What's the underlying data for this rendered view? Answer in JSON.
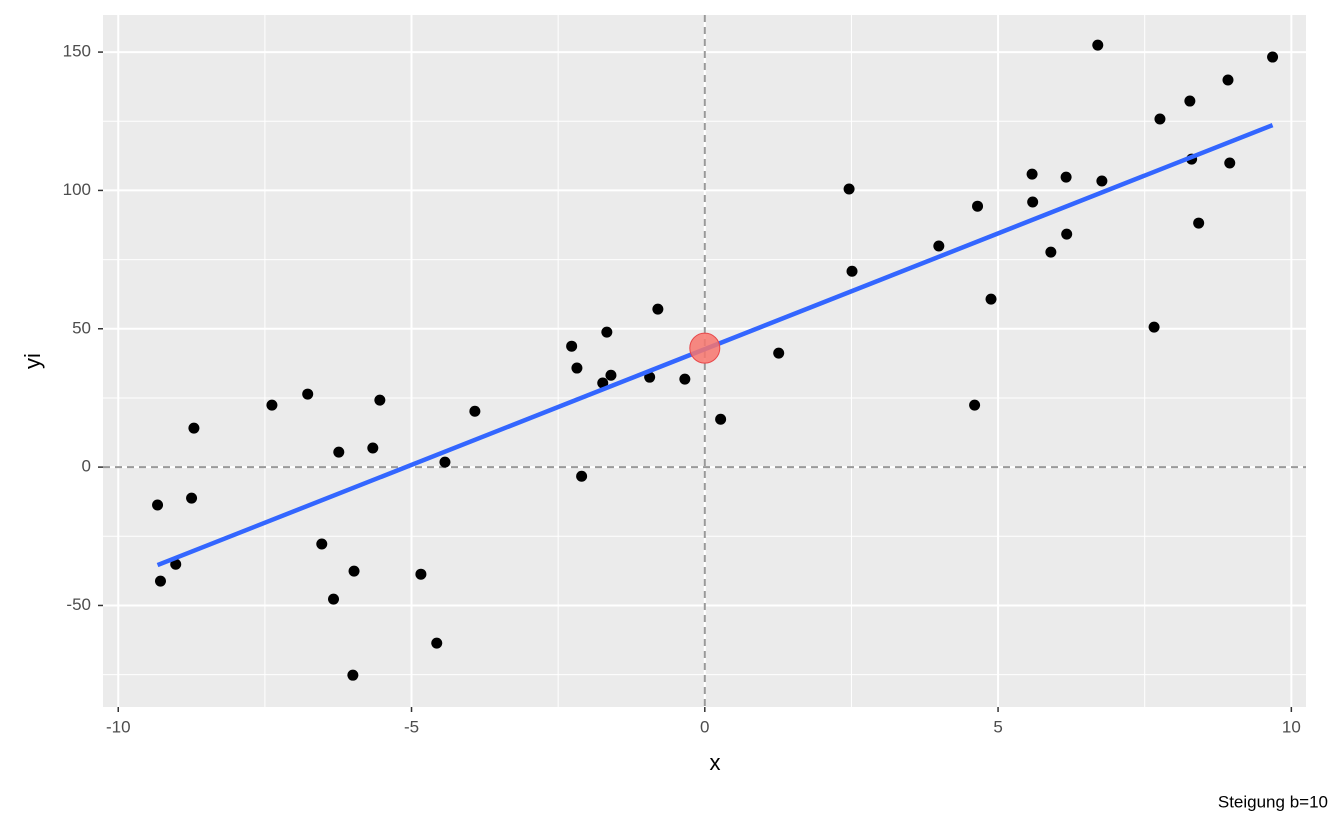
{
  "chart_data": {
    "type": "scatter",
    "xlabel": "x",
    "ylabel": "yi",
    "caption": "Steigung b=10",
    "xlim": [
      -10.26,
      10.25
    ],
    "ylim": [
      -86.7,
      163.4
    ],
    "xticks": [
      -10,
      -5,
      0,
      5,
      10
    ],
    "yticks": [
      -50,
      0,
      50,
      100,
      150
    ],
    "x_minor_grid": [
      -7.5,
      -2.5,
      2.5,
      7.5
    ],
    "y_minor_grid": [
      -75,
      -25,
      25,
      75,
      125
    ],
    "grid": true,
    "hline": 0,
    "vline": 0,
    "points": {
      "color": "#000000",
      "x": [
        -9.33,
        -9.28,
        -9.02,
        -8.75,
        -8.71,
        -7.38,
        -6.77,
        -6.53,
        -6.33,
        -6.24,
        -6.0,
        -5.98,
        -5.66,
        -5.54,
        -4.84,
        -4.57,
        -4.43,
        -3.92,
        -2.27,
        -2.18,
        -2.1,
        -1.74,
        -1.67,
        -1.6,
        -0.94,
        -0.8,
        -0.34,
        0.27,
        1.26,
        2.46,
        2.51,
        3.99,
        4.6,
        4.65,
        4.88,
        5.58,
        5.59,
        5.9,
        6.16,
        6.17,
        6.7,
        6.77,
        7.66,
        7.76,
        8.27,
        8.3,
        8.42,
        8.92,
        8.95,
        9.68
      ],
      "y": [
        -13.7,
        -41.2,
        -35.1,
        -11.2,
        14.1,
        22.4,
        26.4,
        -27.8,
        -47.7,
        5.4,
        -75.2,
        -37.6,
        6.9,
        24.2,
        -38.7,
        -63.6,
        1.8,
        20.2,
        43.7,
        35.8,
        -3.3,
        30.4,
        48.8,
        33.2,
        32.5,
        57.1,
        31.8,
        17.3,
        41.2,
        100.5,
        70.8,
        79.9,
        22.4,
        94.3,
        60.7,
        105.9,
        95.8,
        77.7,
        104.8,
        84.2,
        152.5,
        103.4,
        50.6,
        125.8,
        132.3,
        111.3,
        88.2,
        139.9,
        109.9,
        148.2
      ]
    },
    "fit": {
      "color": "#3366ff",
      "x": [
        -9.33,
        9.68
      ],
      "y": [
        -35.4,
        123.6
      ]
    },
    "highlight": {
      "color": "#f8766d",
      "x": [
        0
      ],
      "y": [
        43.0
      ]
    }
  }
}
